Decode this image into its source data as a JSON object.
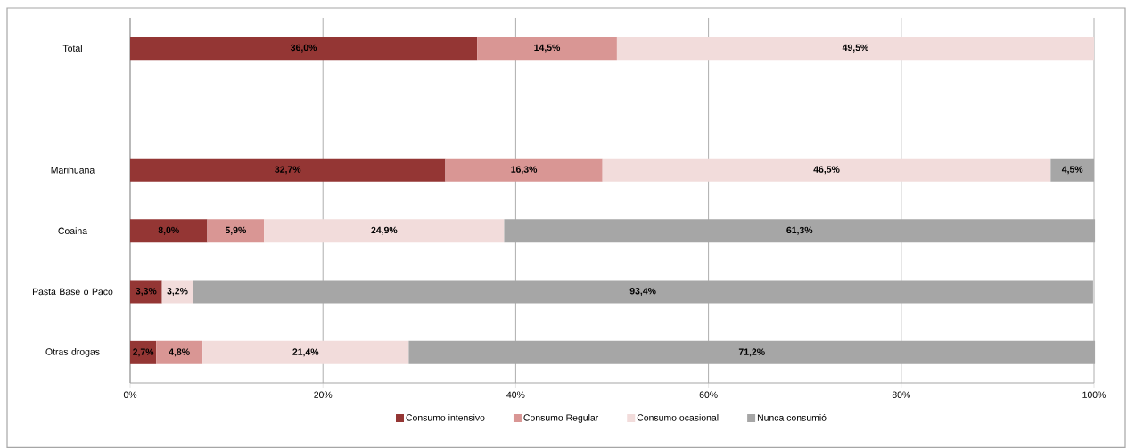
{
  "chart_data": {
    "type": "bar",
    "orientation": "horizontal",
    "stacked": true,
    "categories": [
      "Total",
      null,
      "Marihuana",
      "Coaina",
      "Pasta Base o Paco",
      "Otras drogas"
    ],
    "series": [
      {
        "name": "Consumo intensivo",
        "color": "#943634",
        "values": [
          36.0,
          null,
          32.7,
          8.0,
          3.3,
          2.7
        ],
        "value_labels": [
          "36,0%",
          null,
          "32,7%",
          "8,0%",
          "3,3%",
          "2,7%"
        ]
      },
      {
        "name": "Consumo Regular",
        "color": "#d99694",
        "values": [
          14.5,
          null,
          16.3,
          5.9,
          null,
          4.8
        ],
        "value_labels": [
          "14,5%",
          null,
          "16,3%",
          "5,9%",
          null,
          "4,8%"
        ]
      },
      {
        "name": "Consumo ocasional",
        "color": "#f2dcdb",
        "values": [
          49.5,
          null,
          46.5,
          24.9,
          3.2,
          21.4
        ],
        "value_labels": [
          "49,5%",
          null,
          "46,5%",
          "24,9%",
          "3,2%",
          "21,4%"
        ]
      },
      {
        "name": "Nunca consumió",
        "color": "#a6a6a6",
        "values": [
          null,
          null,
          4.5,
          61.3,
          93.4,
          71.2
        ],
        "value_labels": [
          null,
          null,
          "4,5%",
          "61,3%",
          "93,4%",
          "71,2%"
        ]
      }
    ],
    "xlim": [
      0,
      100
    ],
    "xticks": [
      {
        "value": 0,
        "label": "0%"
      },
      {
        "value": 20,
        "label": "20%"
      },
      {
        "value": 40,
        "label": "40%"
      },
      {
        "value": 60,
        "label": "60%"
      },
      {
        "value": 80,
        "label": "80%"
      },
      {
        "value": 100,
        "label": "100%"
      }
    ],
    "grid": "x",
    "legend": "bottom"
  }
}
